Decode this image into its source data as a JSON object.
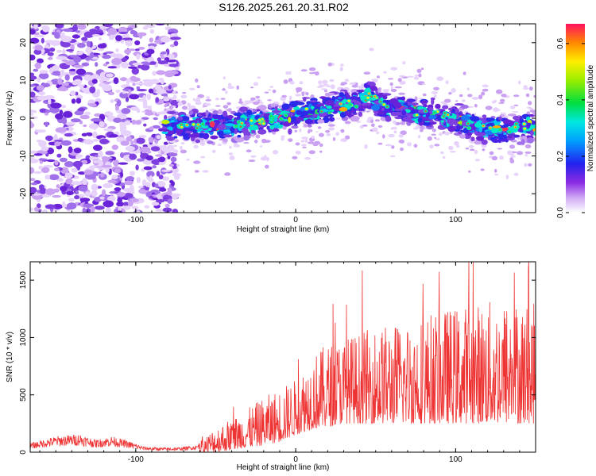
{
  "title": "S126.2025.261.20.31.R02",
  "chart_data": [
    {
      "type": "heatmap",
      "xlabel": "Height of straight line (km)",
      "ylabel": "Frequency (Hz)",
      "xlim": [
        -166,
        150
      ],
      "ylim": [
        -25,
        25
      ],
      "xticks": [
        "-100",
        "0",
        "100"
      ],
      "yticks": [
        "-20",
        "-10",
        "0",
        "10",
        "20"
      ],
      "ridge_points": [
        [
          -80,
          -2
        ],
        [
          -70,
          -2
        ],
        [
          -55,
          -2
        ],
        [
          -40,
          -2
        ],
        [
          -25,
          -1
        ],
        [
          -10,
          0
        ],
        [
          0,
          1
        ],
        [
          10,
          2
        ],
        [
          25,
          3
        ],
        [
          40,
          4
        ],
        [
          47,
          6
        ],
        [
          55,
          3
        ],
        [
          70,
          2
        ],
        [
          85,
          1
        ],
        [
          100,
          0
        ],
        [
          115,
          -3
        ],
        [
          130,
          -3
        ],
        [
          145,
          -2
        ]
      ],
      "colorbar": {
        "label": "Normalized spectral amplitude",
        "range": [
          0.0,
          0.67
        ],
        "ticks": [
          "0.0",
          "0.2",
          "0.4",
          "0.6"
        ]
      }
    },
    {
      "type": "line",
      "xlabel": "Height of straight line (km)",
      "ylabel": "SNR (10 * v/v)",
      "xlim": [
        -166,
        150
      ],
      "ylim": [
        0,
        1660
      ],
      "xticks": [
        "-100",
        "0",
        "100"
      ],
      "yticks": [
        "0",
        "500",
        "1000",
        "1500"
      ],
      "color": "#ee3333",
      "envelope": {
        "x": [
          -166,
          -150,
          -135,
          -125,
          -115,
          -105,
          -95,
          -85,
          -75,
          -62,
          -50,
          -40,
          -30,
          -20,
          -10,
          0,
          10,
          20,
          30,
          50,
          70,
          90,
          110,
          130,
          150
        ],
        "low": [
          0,
          0,
          0,
          0,
          0,
          0,
          0,
          0,
          0,
          0,
          0,
          20,
          40,
          60,
          90,
          150,
          200,
          220,
          250,
          250,
          250,
          250,
          250,
          250,
          250
        ],
        "high": [
          80,
          140,
          160,
          110,
          140,
          100,
          50,
          40,
          40,
          60,
          230,
          300,
          380,
          480,
          560,
          640,
          850,
          950,
          1000,
          1100,
          1150,
          1250,
          1300,
          1350,
          1300
        ]
      }
    }
  ]
}
